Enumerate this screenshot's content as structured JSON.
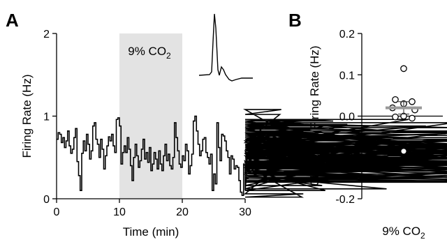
{
  "chart_data": [
    {
      "panel": "A",
      "type": "line",
      "xlabel": "Time (min)",
      "ylabel": "Firing Rate (Hz)",
      "xlim": [
        0,
        30
      ],
      "ylim": [
        0,
        2
      ],
      "xticks": [
        "0",
        "10",
        "20",
        "30"
      ],
      "yticks": [
        "0",
        "1",
        "2"
      ],
      "shaded_region": {
        "x": [
          10,
          20
        ],
        "color": "#e3e3e3"
      },
      "annotation": {
        "text": "9% CO",
        "subscript": "2"
      },
      "series": [
        {
          "style": "step",
          "color": "#000000",
          "bin_width": 0.25,
          "y": [
            0.72,
            0.8,
            0.78,
            0.68,
            0.74,
            0.62,
            0.7,
            0.82,
            0.64,
            0.55,
            0.6,
            0.74,
            0.85,
            0.45,
            0.28,
            0.1,
            0.55,
            0.7,
            0.58,
            0.78,
            0.66,
            0.48,
            0.58,
            0.88,
            0.92,
            0.72,
            0.66,
            0.5,
            0.72,
            0.6,
            0.36,
            0.52,
            0.64,
            0.75,
            0.7,
            0.78,
            0.64,
            0.56,
            0.96,
            0.98,
            0.88,
            0.42,
            0.56,
            0.64,
            0.56,
            0.74,
            0.6,
            0.4,
            0.22,
            0.5,
            0.66,
            0.52,
            0.38,
            0.46,
            0.6,
            0.72,
            0.48,
            0.56,
            0.44,
            0.62,
            0.34,
            0.42,
            0.56,
            0.48,
            0.36,
            0.58,
            0.42,
            0.34,
            0.52,
            0.66,
            0.46,
            0.54,
            0.4,
            0.36,
            0.5,
            0.92,
            0.74,
            0.58,
            0.42,
            0.38,
            0.52,
            0.46,
            0.66,
            0.58,
            0.3,
            0.4,
            0.54,
            0.94,
            1.0,
            0.82,
            0.66,
            0.52,
            0.58,
            0.72,
            0.74,
            0.56,
            0.5,
            0.42,
            0.54,
            0.1,
            0.3,
            0.18,
            0.92,
            0.62,
            0.46,
            0.78,
            0.76,
            0.7,
            0.58,
            0.5,
            0.3,
            0.52,
            0.48,
            0.36,
            0.4,
            0.38,
            0.22,
            0.08,
            0.04,
            0.42,
            0.1,
            0.3,
            0.58,
            0.45,
            0.55,
            0.44,
            0.32,
            0.6,
            0.52,
            0.38,
            0.46,
            0.3,
            0.55,
            0.62,
            0.72,
            0.7,
            0.48,
            0.56,
            0.5,
            0.42,
            0.38,
            0.68,
            1.02,
            1.08,
            0.82,
            0.9,
            0.86,
            0.7,
            0.8,
            0.5,
            0.62,
            0.74,
            0.6,
            0.72,
            0.54,
            0.4,
            0.02,
            0.06,
            0.66,
            0.78,
            0.84,
            0.9,
            0.78,
            0.66,
            0.68,
            0.72,
            0.6,
            0.4,
            0.28,
            0.16,
            0.36,
            0.1,
            0.24,
            0.64,
            0.9,
            0.96,
            0.94,
            0.78,
            0.72,
            0.58,
            0.5,
            0.62,
            0.4,
            0.32,
            0.58,
            0.9,
            0.88,
            0.74,
            0.58,
            0.44,
            0.36,
            0.52,
            0.6,
            0.7,
            0.66,
            0.4,
            0.3,
            0.52,
            0.62,
            0.76,
            0.6,
            0.5,
            0.42,
            0.36,
            0.7,
            0.62,
            0.5,
            0.4,
            0.34,
            0.28,
            0.12,
            0.62,
            0.7,
            0.8,
            0.72,
            0.6,
            0.44,
            0.38,
            0.56,
            0.42,
            0.3,
            0.38,
            0.5,
            0.62,
            0.96,
            0.8,
            0.74,
            0.5,
            0.42,
            0.54,
            0.4,
            0.38,
            0.56,
            0.64,
            0.7,
            0.88,
            0.8,
            0.66,
            0.52,
            0.4,
            0.72,
            0.48,
            0.56,
            0.7,
            0.52,
            0.64,
            0.7,
            0.64,
            0.5,
            0.38,
            0.44,
            0.66,
            0.58,
            0.92,
            0.86,
            0.8,
            0.66,
            0.56,
            0.44,
            0.6,
            0.72,
            0.38,
            0.3,
            0.44,
            0.56,
            0.38,
            0.6,
            0.66,
            0.46,
            0.3,
            0.38,
            0.66,
            0.7,
            0.44,
            0.22,
            0.2,
            0.3,
            0.36,
            0.52,
            0.86,
            0.8,
            0.56,
            0.64,
            0.52,
            0.26,
            0.2,
            0.36,
            0.44,
            0.3,
            0.22,
            0.2,
            0.62,
            0.72,
            0.56,
            0.4,
            0.36,
            0.5,
            0.42,
            0.7,
            0.82,
            0.66,
            0.52,
            0.38,
            0.42,
            0.58,
            0.66,
            0.72,
            0.82,
            0.74,
            0.62,
            0.5,
            0.4,
            0.3,
            0.2,
            0.36,
            0.48,
            0.5,
            0.44,
            0.38,
            0.3,
            0.26,
            0.22,
            0.2
          ]
        }
      ]
    },
    {
      "panel": "B",
      "type": "scatter",
      "ylabel": "Change in Firing Rate (Hz)",
      "ylim": [
        -0.2,
        0.2
      ],
      "yticks": [
        "0.2",
        "0.1",
        "0.0",
        "-0.1",
        "-0.2"
      ],
      "category_label": {
        "text": "9% CO",
        "subscript": "2"
      },
      "points": [
        0.115,
        0.04,
        0.035,
        0.03,
        0.02,
        0.015,
        -0.002,
        0.0,
        -0.005,
        -0.085
      ],
      "mean": 0.02,
      "sem": 0.015
    }
  ]
}
